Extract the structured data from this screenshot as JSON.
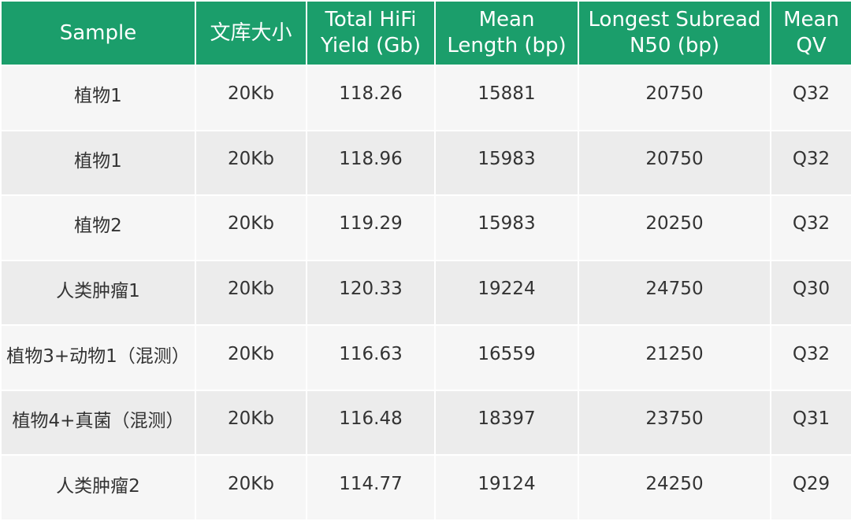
{
  "table": {
    "header": [
      [
        "Sample"
      ],
      [
        "文库大小"
      ],
      [
        "Total HiFi",
        "Yield (Gb)"
      ],
      [
        "Mean",
        "Length (bp)"
      ],
      [
        "Longest Subread",
        "N50 (bp)"
      ],
      [
        "Mean",
        "QV"
      ]
    ],
    "rows": [
      [
        "植物1",
        "20Kb",
        "118.26",
        "15881",
        "20750",
        "Q32"
      ],
      [
        "植物1",
        "20Kb",
        "118.96",
        "15983",
        "20750",
        "Q32"
      ],
      [
        "植物2",
        "20Kb",
        "119.29",
        "15983",
        "20250",
        "Q32"
      ],
      [
        "人类肿瘤1",
        "20Kb",
        "120.33",
        "19224",
        "24750",
        "Q30"
      ],
      [
        "植物3+动物1（混测）",
        "20Kb",
        "116.63",
        "16559",
        "21250",
        "Q32"
      ],
      [
        "植物4+真菌（混测）",
        "20Kb",
        "116.48",
        "18397",
        "23750",
        "Q31"
      ],
      [
        "人类肿瘤2",
        "20Kb",
        "114.77",
        "19124",
        "24250",
        "Q29"
      ]
    ]
  }
}
